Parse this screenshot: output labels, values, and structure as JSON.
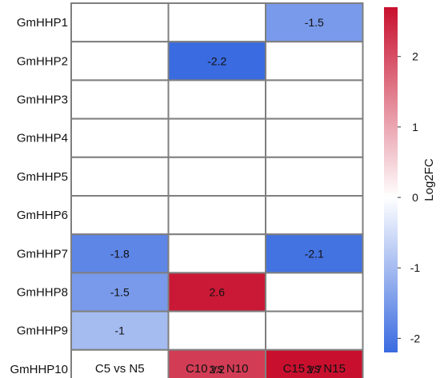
{
  "chart_data": {
    "type": "heatmap",
    "rows": [
      "GmHHP1",
      "GmHHP2",
      "GmHHP3",
      "GmHHP4",
      "GmHHP5",
      "GmHHP6",
      "GmHHP7",
      "GmHHP8",
      "GmHHP9",
      "GmHHP10"
    ],
    "columns": [
      "C5 vs N5",
      "C10 vs N10",
      "C15 vs N15"
    ],
    "values": [
      [
        null,
        null,
        -1.5
      ],
      [
        null,
        -2.2,
        null
      ],
      [
        null,
        null,
        null
      ],
      [
        null,
        null,
        null
      ],
      [
        null,
        null,
        null
      ],
      [
        null,
        null,
        null
      ],
      [
        -1.8,
        null,
        -2.1
      ],
      [
        -1.5,
        2.6,
        null
      ],
      [
        -1,
        null,
        null
      ],
      [
        null,
        2.2,
        2.7
      ]
    ],
    "cell_labels": [
      [
        "",
        "",
        "-1.5"
      ],
      [
        "",
        "-2.2",
        ""
      ],
      [
        "",
        "",
        ""
      ],
      [
        "",
        "",
        ""
      ],
      [
        "",
        "",
        ""
      ],
      [
        "",
        "",
        ""
      ],
      [
        "-1.8",
        "",
        "-2.1"
      ],
      [
        "-1.5",
        "2.6",
        ""
      ],
      [
        "-1",
        "",
        ""
      ],
      [
        "",
        "2.2",
        "2.7"
      ]
    ],
    "colorbar": {
      "title": "Log2FC",
      "ticks": [
        2,
        1,
        0,
        -1,
        -2
      ],
      "tick_labels": [
        "2",
        "1",
        "0",
        "-1",
        "-2"
      ],
      "range": [
        -2.2,
        2.7
      ],
      "colors": {
        "low": "#3a6be0",
        "mid": "#ffffff",
        "high": "#c8102e"
      }
    },
    "missing_color": "#ffffff",
    "grid_color": "#7f7f7f"
  }
}
